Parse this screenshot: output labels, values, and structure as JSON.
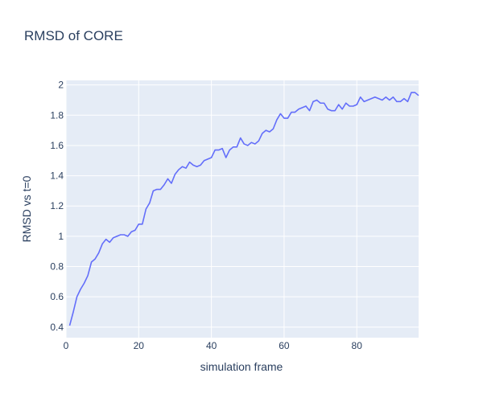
{
  "chart_data": {
    "type": "line",
    "title": "RMSD of CORE",
    "xlabel": "simulation frame",
    "ylabel": "RMSD vs t=0",
    "xlim": [
      0,
      97
    ],
    "ylim": [
      0.33,
      2.03
    ],
    "x_ticks": [
      0,
      20,
      40,
      60,
      80
    ],
    "x_tick_labels": [
      "0",
      "20",
      "40",
      "60",
      "80"
    ],
    "y_ticks": [
      0.4,
      0.6,
      0.8,
      1.0,
      1.2,
      1.4,
      1.6,
      1.8,
      2.0
    ],
    "y_tick_labels": [
      "0.4",
      "0.6",
      "0.8",
      "1",
      "1.2",
      "1.4",
      "1.6",
      "1.8",
      "2"
    ],
    "grid": true,
    "legend": "none",
    "colors": {
      "line": "#636efa",
      "plot_bg": "#e5ecf6",
      "grid": "#ffffff",
      "text": "#2a3f5f"
    },
    "series": [
      {
        "x": [
          1,
          2,
          3,
          4,
          5,
          6,
          7,
          8,
          9,
          10,
          11,
          12,
          13,
          14,
          15,
          16,
          17,
          18,
          19,
          20,
          21,
          22,
          23,
          24,
          25,
          26,
          27,
          28,
          29,
          30,
          31,
          32,
          33,
          34,
          35,
          36,
          37,
          38,
          39,
          40,
          41,
          42,
          43,
          44,
          45,
          46,
          47,
          48,
          49,
          50,
          51,
          52,
          53,
          54,
          55,
          56,
          57,
          58,
          59,
          60,
          61,
          62,
          63,
          64,
          65,
          66,
          67,
          68,
          69,
          70,
          71,
          72,
          73,
          74,
          75,
          76,
          77,
          78,
          79,
          80,
          81,
          82,
          83,
          84,
          85,
          86,
          87,
          88,
          89,
          90,
          91,
          92,
          93,
          94,
          95,
          96,
          97
        ],
        "y": [
          0.41,
          0.5,
          0.6,
          0.65,
          0.69,
          0.74,
          0.83,
          0.85,
          0.89,
          0.95,
          0.98,
          0.96,
          0.99,
          1.0,
          1.01,
          1.01,
          1.0,
          1.03,
          1.04,
          1.08,
          1.08,
          1.18,
          1.22,
          1.3,
          1.31,
          1.31,
          1.34,
          1.38,
          1.35,
          1.41,
          1.44,
          1.46,
          1.45,
          1.49,
          1.47,
          1.46,
          1.47,
          1.5,
          1.51,
          1.52,
          1.57,
          1.57,
          1.58,
          1.52,
          1.57,
          1.59,
          1.59,
          1.65,
          1.61,
          1.6,
          1.62,
          1.61,
          1.63,
          1.68,
          1.7,
          1.69,
          1.71,
          1.77,
          1.81,
          1.78,
          1.78,
          1.82,
          1.82,
          1.84,
          1.85,
          1.86,
          1.83,
          1.89,
          1.9,
          1.88,
          1.88,
          1.84,
          1.83,
          1.83,
          1.87,
          1.84,
          1.88,
          1.86,
          1.86,
          1.87,
          1.92,
          1.89,
          1.9,
          1.91,
          1.92,
          1.91,
          1.9,
          1.92,
          1.9,
          1.92,
          1.89,
          1.89,
          1.91,
          1.89,
          1.95,
          1.95,
          1.93
        ]
      }
    ]
  }
}
